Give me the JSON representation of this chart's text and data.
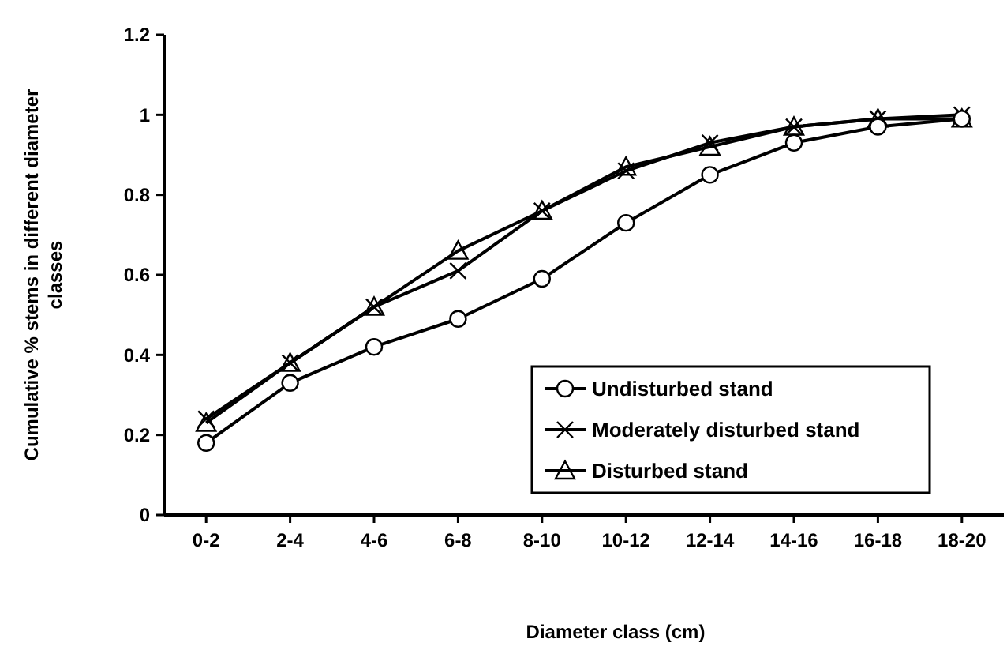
{
  "chart_data": {
    "type": "line",
    "xlabel": "Diameter class (cm)",
    "ylabel": "Cumulative % stems in different diameter classes",
    "categories": [
      "0-2",
      "2-4",
      "4-6",
      "6-8",
      "8-10",
      "10-12",
      "12-14",
      "14-16",
      "16-18",
      "18-20"
    ],
    "series": [
      {
        "name": "Undisturbed stand",
        "color": "#000000",
        "marker": "circle",
        "values": [
          0.18,
          0.33,
          0.42,
          0.49,
          0.59,
          0.73,
          0.85,
          0.93,
          0.97,
          0.99
        ]
      },
      {
        "name": "Moderately disturbed stand",
        "color": "#000000",
        "marker": "cross",
        "values": [
          0.24,
          0.38,
          0.52,
          0.61,
          0.76,
          0.86,
          0.93,
          0.97,
          0.99,
          1.0
        ]
      },
      {
        "name": "Disturbed stand",
        "color": "#000000",
        "marker": "triangle",
        "values": [
          0.23,
          0.38,
          0.52,
          0.66,
          0.76,
          0.87,
          0.92,
          0.97,
          0.99,
          0.99
        ]
      }
    ],
    "ylim": [
      0,
      1.2
    ],
    "yticks": [
      0,
      0.2,
      0.4,
      0.6,
      0.8,
      1,
      1.2
    ],
    "grid": false,
    "legend": "right",
    "line_style": "solid"
  }
}
